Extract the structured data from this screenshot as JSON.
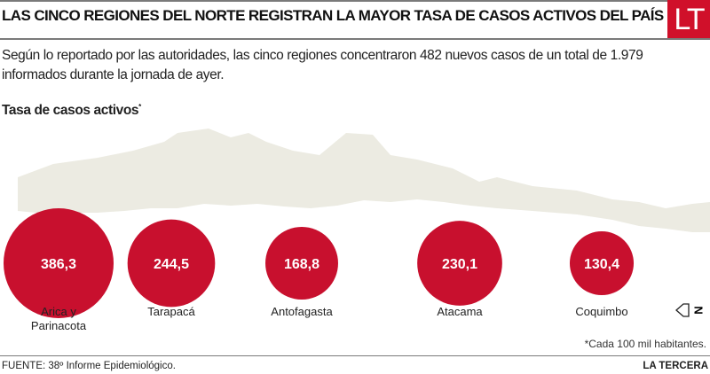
{
  "header": {
    "title": "LAS CINCO REGIONES DEL NORTE REGISTRAN  LA MAYOR TASA DE CASOS ACTIVOS DEL PAÍS",
    "logo": "LT"
  },
  "intro": "Según lo reportado por las autoridades, las cinco regiones concentraron 482 nuevos casos de un total de 1.979 informados durante la jornada de ayer.",
  "subtitle": "Tasa de casos activos",
  "subtitle_mark": "*",
  "chart_data": {
    "type": "bubble",
    "title": "Tasa de casos activos*",
    "unit": "Cada 100 mil habitantes",
    "categories": [
      "Arica y Parinacota",
      "Tarapacá",
      "Antofagasta",
      "Atacama",
      "Coquimbo"
    ],
    "values": [
      386.3,
      244.5,
      168.8,
      230.1,
      130.4
    ],
    "value_labels": [
      "386,3",
      "244,5",
      "168,8",
      "230,1",
      "130,4"
    ],
    "color": "#c8102e"
  },
  "north_label": "N",
  "footnote": "*Cada 100 mil habitantes.",
  "source": "FUENTE: 38º Informe Epidemiológico.",
  "brand": "LA TERCERA"
}
